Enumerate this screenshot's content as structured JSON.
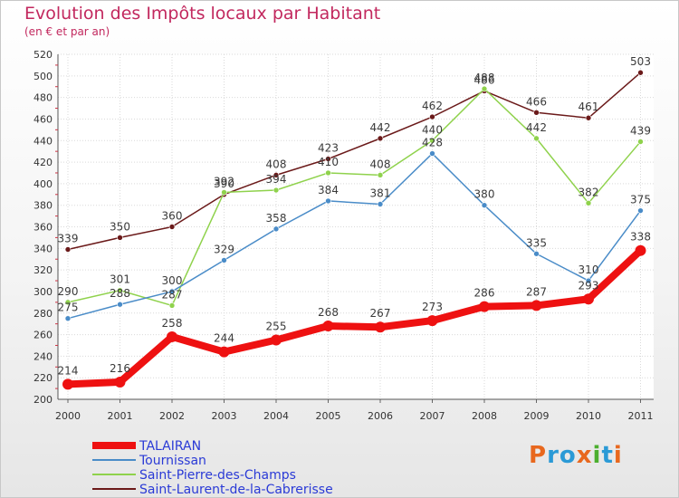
{
  "title": "Evolution des Impôts locaux par Habitant",
  "subtitle": "(en € et par an)",
  "brand": {
    "text": "Proxiti",
    "letter_colors": [
      "#e8681e",
      "#2b9ad6",
      "#2b9ad6",
      "#e8681e",
      "#4caf2f",
      "#2b9ad6",
      "#e8681e"
    ]
  },
  "chart_data": {
    "type": "line",
    "title": "Evolution des Impôts locaux par Habitant",
    "subtitle": "(en € et par an)",
    "x": [
      "2000",
      "2001",
      "2002",
      "2003",
      "2004",
      "2005",
      "2006",
      "2007",
      "2008",
      "2009",
      "2010",
      "2011"
    ],
    "ylim": [
      200,
      520
    ],
    "yticks": [
      200,
      220,
      240,
      260,
      280,
      300,
      320,
      340,
      360,
      380,
      400,
      420,
      440,
      460,
      480,
      500,
      520
    ],
    "grid": true,
    "legend_position": "bottom-left",
    "series": [
      {
        "name": "Saint-Laurent-de-la-Cabrerisse",
        "color": "#6b1a1a",
        "values": [
          339,
          350,
          360,
          390,
          408,
          423,
          442,
          462,
          486,
          466,
          461,
          503
        ]
      },
      {
        "name": "Saint-Pierre-des-Champs",
        "color": "#8fd24c",
        "values": [
          290,
          301,
          287,
          392,
          394,
          410,
          408,
          440,
          488,
          442,
          382,
          439
        ]
      },
      {
        "name": "Tournissan",
        "color": "#4a8cc8",
        "values": [
          275,
          288,
          300,
          329,
          358,
          384,
          381,
          428,
          380,
          335,
          310,
          375
        ]
      },
      {
        "name": "TALAIRAN",
        "color": "#ee1111",
        "values": [
          214,
          216,
          258,
          244,
          255,
          268,
          267,
          273,
          286,
          287,
          293,
          338
        ]
      }
    ]
  }
}
